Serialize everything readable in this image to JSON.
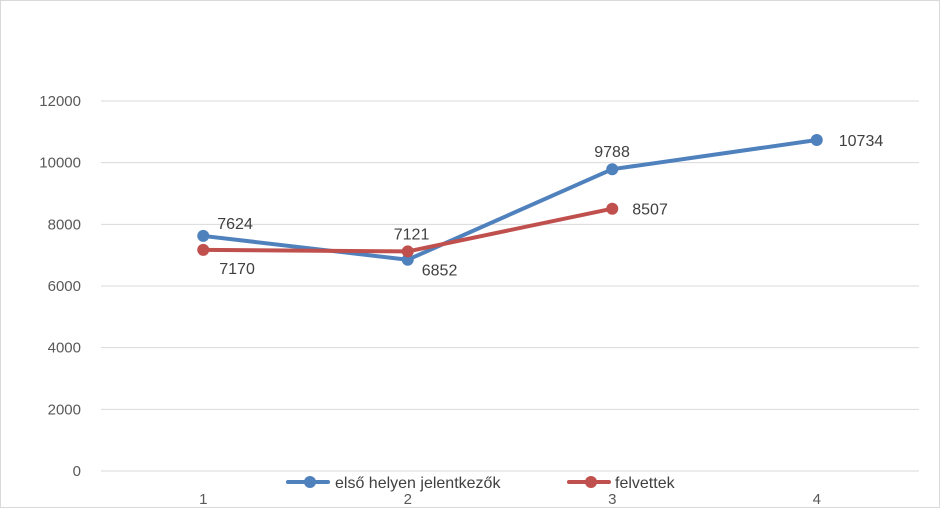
{
  "chart_data": {
    "type": "line",
    "categories": [
      "1",
      "2",
      "3",
      "4"
    ],
    "series": [
      {
        "name": "első helyen jelentkezők",
        "values": [
          7624,
          6852,
          9788,
          10734
        ],
        "color": "#4f81bd"
      },
      {
        "name": "felvettek",
        "values": [
          7170,
          7121,
          8507,
          null
        ],
        "color": "#c0504d"
      }
    ],
    "ylim": [
      0,
      12000
    ],
    "yticks": [
      "0",
      "2000",
      "4000",
      "6000",
      "8000",
      "10000",
      "12000"
    ],
    "grid": true,
    "legend_position": "bottom",
    "title": "",
    "xlabel": "",
    "ylabel": ""
  }
}
